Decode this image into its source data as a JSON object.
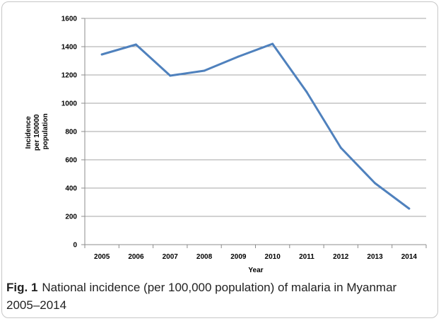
{
  "caption": {
    "label": "Fig. 1",
    "text": "National incidence (per 100,000 population) of malaria in Myanmar 2005–2014"
  },
  "chart_data": {
    "type": "line",
    "title": "",
    "xlabel": "Year",
    "ylabel_lines": [
      "Incidence",
      "per 100000",
      "population"
    ],
    "categories": [
      "2005",
      "2006",
      "2007",
      "2008",
      "2009",
      "2010",
      "2011",
      "2012",
      "2013",
      "2014"
    ],
    "series": [
      {
        "values": [
          1345,
          1415,
          1195,
          1230,
          1330,
          1420,
          1080,
          685,
          435,
          255
        ]
      }
    ],
    "ylim": [
      0,
      1600
    ],
    "yticks": [
      "0",
      "200",
      "400",
      "600",
      "800",
      "1000",
      "1200",
      "1400",
      "1600"
    ],
    "grid": true,
    "legend": "none",
    "line_color": "#4f81bd",
    "grid_color": "#a6a6a6"
  }
}
